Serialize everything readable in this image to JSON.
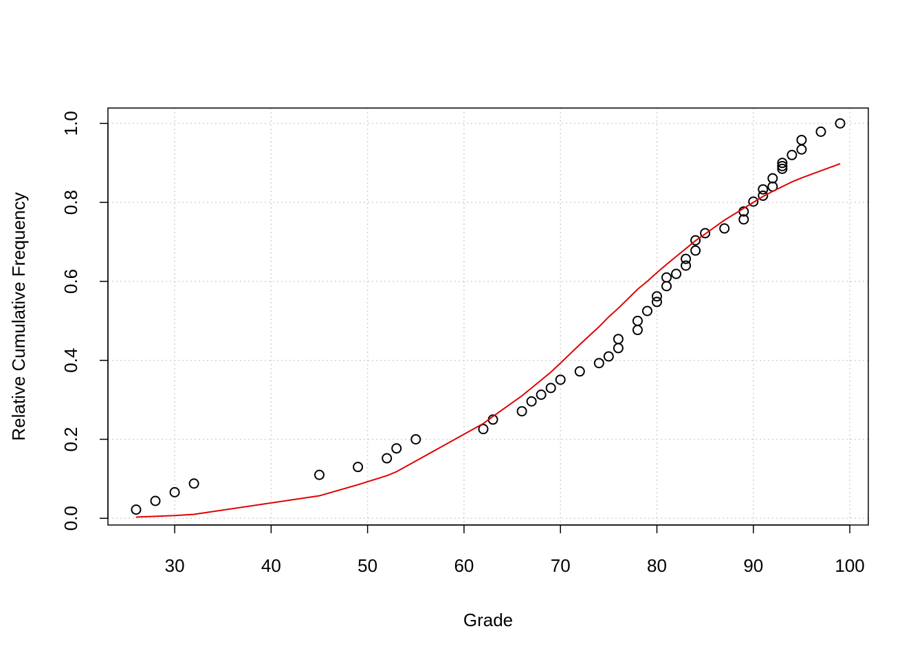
{
  "chart_data": {
    "type": "scatter",
    "x_label": "Grade",
    "y_label": "Relative Cumulative Frequency",
    "xlim": [
      23.08,
      101.92
    ],
    "ylim": [
      -0.017,
      1.039
    ],
    "xticks": [
      30,
      40,
      50,
      60,
      70,
      80,
      90,
      100
    ],
    "yticks": [
      {
        "value": 0,
        "label": "0.0"
      },
      0.2,
      0.4,
      0.6,
      0.8,
      {
        "value": 1,
        "label": "1.0"
      }
    ],
    "grid": true,
    "series": [
      {
        "type": "scatter",
        "color": "#000000",
        "x": [
          26,
          28,
          30,
          32,
          45,
          49,
          52,
          53,
          55,
          62,
          63,
          66,
          67,
          68,
          69,
          70,
          72,
          74,
          75,
          76,
          76,
          78,
          78,
          79,
          80,
          80,
          81,
          81,
          82,
          83,
          83,
          84,
          84,
          85,
          87,
          89,
          89,
          90,
          91,
          91,
          92,
          92,
          93,
          93,
          93,
          94,
          95,
          95,
          97,
          99
        ],
        "values": [
          0.022,
          0.044,
          0.066,
          0.088,
          0.11,
          0.13,
          0.152,
          0.177,
          0.2,
          0.226,
          0.25,
          0.271,
          0.296,
          0.313,
          0.33,
          0.351,
          0.372,
          0.393,
          0.41,
          0.431,
          0.454,
          0.477,
          0.5,
          0.525,
          0.548,
          0.562,
          0.588,
          0.61,
          0.619,
          0.64,
          0.657,
          0.678,
          0.704,
          0.722,
          0.734,
          0.757,
          0.777,
          0.802,
          0.817,
          0.833,
          0.84,
          0.861,
          0.885,
          0.892,
          0.9,
          0.92,
          0.934,
          0.958,
          0.979,
          1.0
        ]
      },
      {
        "type": "line",
        "color": "#e00000",
        "x": [
          26,
          28,
          30,
          32,
          45,
          49,
          52,
          53,
          55,
          62,
          63,
          66,
          67,
          68,
          69,
          70,
          72,
          74,
          75,
          76,
          78,
          79,
          80,
          81,
          82,
          83,
          84,
          85,
          87,
          89,
          90,
          91,
          92,
          93,
          94,
          95,
          97,
          99
        ],
        "values": [
          0.003,
          0.005,
          0.007,
          0.01,
          0.057,
          0.085,
          0.108,
          0.118,
          0.145,
          0.24,
          0.258,
          0.31,
          0.33,
          0.35,
          0.37,
          0.393,
          0.44,
          0.485,
          0.51,
          0.532,
          0.58,
          0.6,
          0.622,
          0.643,
          0.663,
          0.683,
          0.703,
          0.72,
          0.755,
          0.785,
          0.8,
          0.815,
          0.828,
          0.84,
          0.852,
          0.862,
          0.88,
          0.898
        ]
      }
    ]
  }
}
